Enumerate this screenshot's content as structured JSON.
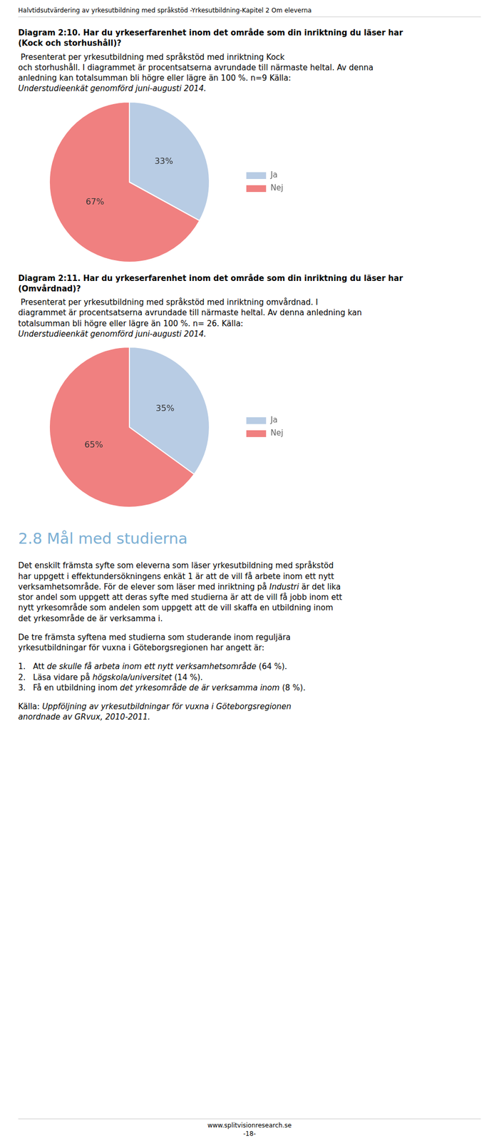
{
  "header": "Halvtidsutvärdering av yrkesutbildning med språkstöd -Yrkesutbildning-Kapitel 2 Om eleverna",
  "chart_data": [
    {
      "type": "pie",
      "title": "Diagram 2:10. Har du yrkeserfarenhet inom det område som din inriktning du läser har\n(Kock och storhushåll)?",
      "subtitle": " Presenterat per yrkesutbildning med språkstöd med inriktning Kock\noch storhushåll. I diagrammet är procentsatserna avrundade till närmaste heltal. Av denna\nanledning kan totalsumman bli högre eller lägre än 100 %. n=9 Källa: ",
      "annotations": [
        {
          "text": "Understudieenkät genomförd juni-augusti 2014.",
          "italic": true
        }
      ],
      "categories": [
        "Ja",
        "Nej"
      ],
      "values": [
        33,
        67
      ],
      "value_labels": [
        "33%",
        "67%"
      ],
      "data_labels": true,
      "colors": [
        "#b8cce4",
        "#f08080"
      ],
      "legend": "right"
    },
    {
      "type": "pie",
      "title": "Diagram 2:11. Har du yrkeserfarenhet inom det område som din inriktning du läser har\n(Omvårdnad)?",
      "subtitle": " Presenterat per yrkesutbildning med språkstöd med inriktning omvårdnad. I\ndiagrammet är procentsatserna avrundade till närmaste heltal. Av denna anledning kan\ntotalsumman bli högre eller lägre än 100 %. n= 26. Källa: ",
      "annotations": [
        {
          "text": "Understudieenkät genomförd juni-augusti 2014.",
          "italic": true
        }
      ],
      "categories": [
        "Ja",
        "Nej"
      ],
      "values": [
        35,
        65
      ],
      "value_labels": [
        "35%",
        "65%"
      ],
      "data_labels": true,
      "colors": [
        "#b8cce4",
        "#f08080"
      ],
      "legend": "right"
    }
  ],
  "section_title": "2.8 Mål med studierna",
  "section_title_color": "#7bafd4",
  "body": [
    [
      [
        "Det enskilt främsta syfte som eleverna som läser yrkesutbildning med språkstöd"
      ],
      [
        "har uppgett i effektundersökningens enkät 1 är att de vill få arbete inom ett nytt"
      ],
      [
        "verksamhetsområde. För de elever som läser med inriktning på ",
        {
          "text": "Industri",
          "italic": true
        },
        " är det lika"
      ],
      [
        "stor andel som uppgett att deras syfte med studierna är att de vill få jobb inom ett"
      ],
      [
        "nytt yrkesområde som andelen som uppgett att de vill skaffa en utbildning inom"
      ],
      [
        "det yrkesområde de är verksamma i."
      ]
    ],
    [
      [
        "De tre främsta syftena med studierna som studerande inom reguljära"
      ],
      [
        "yrkesutbildningar för vuxna i Göteborgsregionen har angett är:"
      ]
    ],
    [
      [
        "1.   Att ",
        {
          "text": "de skulle få arbeta inom ett nytt verksamhetsområde",
          "italic": true
        },
        " (64 %)."
      ],
      [
        "2.   Läsa vidare på ",
        {
          "text": "högskola/universitet",
          "italic": true
        },
        " (14 %)."
      ],
      [
        "3.   Få en utbildning inom ",
        {
          "text": "det yrkesområde de är verksamma inom",
          "italic": true
        },
        " (8 %)."
      ]
    ],
    [
      [
        "Källa: ",
        {
          "text": "Uppföljning av yrkesutbildningar för vuxna i Göteborgsregionen",
          "italic": true
        }
      ],
      [
        {
          "text": "anordnade av GRvux, 2010-2011.",
          "italic": true
        }
      ]
    ]
  ],
  "footer": [
    "www.splitvisionresearch.se",
    "-18-"
  ]
}
